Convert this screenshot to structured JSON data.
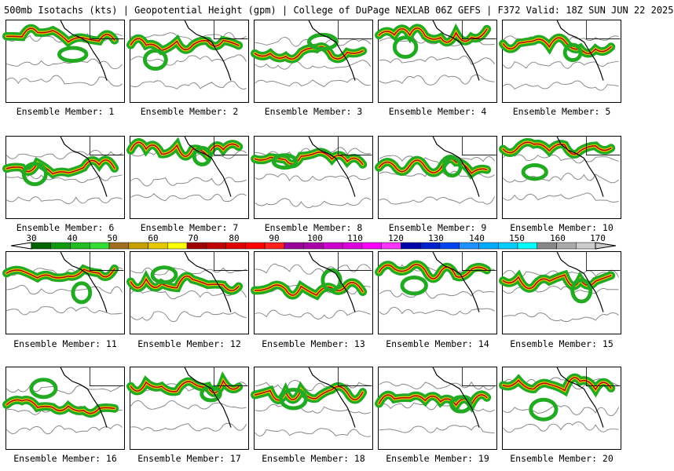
{
  "title": "500mb Isotachs (kts) | Geopotential Height (gpm) | College of DuPage NEXLAB  06Z GEFS | F372 Valid: 18Z SUN JUN 22 2025",
  "members": [
    "Ensemble Member: 1",
    "Ensemble Member: 2",
    "Ensemble Member: 3",
    "Ensemble Member: 4",
    "Ensemble Member: 5",
    "Ensemble Member: 6",
    "Ensemble Member: 7",
    "Ensemble Member: 8",
    "Ensemble Member: 9",
    "Ensemble Member: 10",
    "Ensemble Member: 11",
    "Ensemble Member: 12",
    "Ensemble Member: 13",
    "Ensemble Member: 14",
    "Ensemble Member: 15",
    "Ensemble Member: 16",
    "Ensemble Member: 17",
    "Ensemble Member: 18",
    "Ensemble Member: 19",
    "Ensemble Member: 20"
  ],
  "colorbar": {
    "labels": [
      "30",
      "40",
      "50",
      "60",
      "70",
      "80",
      "90",
      "100",
      "110",
      "120",
      "130",
      "140",
      "150",
      "160",
      "170"
    ],
    "colors": [
      "#006400",
      "#119911",
      "#22bb22",
      "#33dd33",
      "#a07020",
      "#c8a000",
      "#e6c800",
      "#ffff00",
      "#a00000",
      "#c00000",
      "#e00000",
      "#ff0000",
      "#ff2020",
      "#990099",
      "#aa00aa",
      "#cc00cc",
      "#dd00dd",
      "#ff00ff",
      "#ff33ff",
      "#0000aa",
      "#0022cc",
      "#0044ee",
      "#1e90ff",
      "#00aaff",
      "#00ccff",
      "#00ffff",
      "#888888",
      "#aaaaaa",
      "#cccccc"
    ]
  },
  "colors": {
    "jet_green": "#22aa22",
    "jet_yellow": "#e8c400",
    "jet_red": "#b00000",
    "contour": "#888888",
    "coast": "#000000"
  }
}
